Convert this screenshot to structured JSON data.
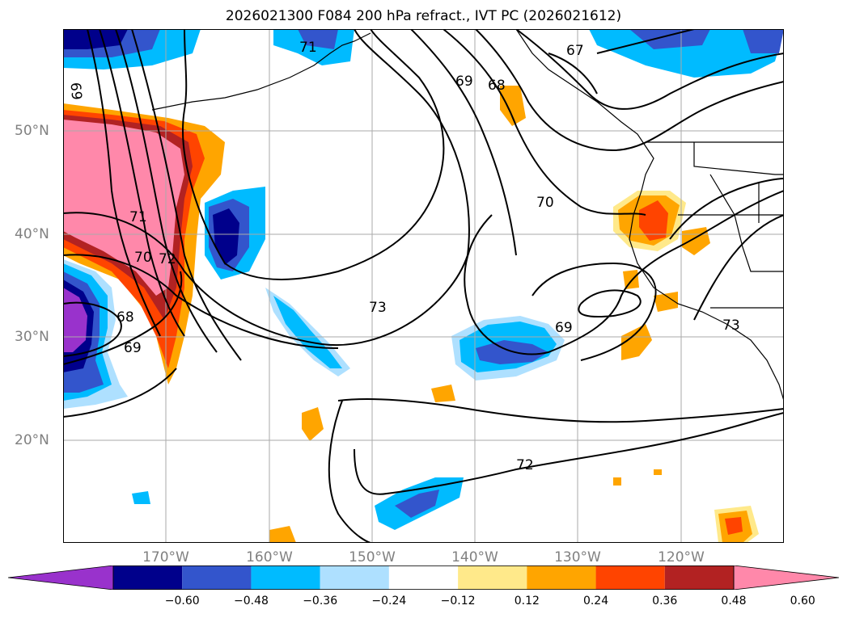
{
  "title": "2026021300 F084 200 hPa refract., IVT PC (2026021612)",
  "lat_labels": [
    "50°N",
    "40°N",
    "30°N",
    "20°N"
  ],
  "lon_labels": [
    "170°W",
    "160°W",
    "150°W",
    "140°W",
    "130°W",
    "120°W"
  ],
  "contour_labels": [
    "69",
    "71",
    "69",
    "68",
    "67",
    "71",
    "70",
    "72",
    "68",
    "69",
    "70",
    "73",
    "69",
    "72",
    "73"
  ],
  "colorbar": {
    "ticks": [
      "−0.60",
      "−0.48",
      "−0.36",
      "−0.24",
      "−0.12",
      "0.12",
      "0.24",
      "0.36",
      "0.48",
      "0.60"
    ],
    "colors": [
      "#9932cc",
      "#00008b",
      "#3355cc",
      "#00bbff",
      "#aee0ff",
      "#ffffff",
      "#ffe98a",
      "#ffa500",
      "#ff4400",
      "#b22222",
      "#ff88aa"
    ]
  }
}
